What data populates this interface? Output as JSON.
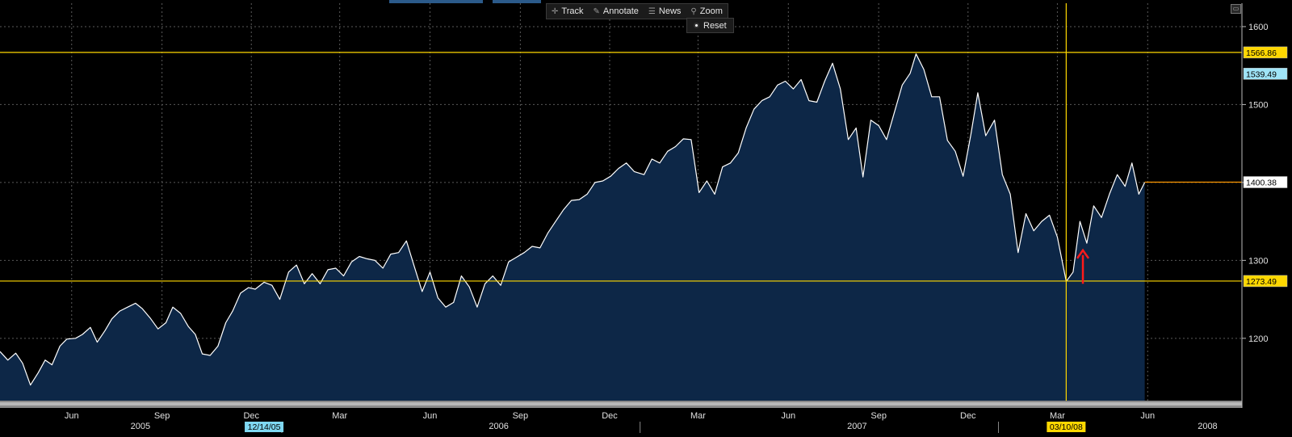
{
  "toolbar": {
    "track_label": "Track",
    "annotate_label": "Annotate",
    "news_label": "News",
    "zoom_label": "Zoom",
    "reset_label": "Reset"
  },
  "colors": {
    "background": "#000000",
    "area_fill": "#0d2747",
    "line": "#ffffff",
    "reference_line": "#ffd800",
    "last_line": "#ff9900",
    "arrow": "#ff1a1a",
    "grid": "#5a5a5a"
  },
  "chart_data": {
    "type": "area",
    "title": "",
    "xlabel": "",
    "ylabel": "",
    "y_axis_position": "right",
    "ylim": [
      1120,
      1630
    ],
    "grid": true,
    "y_ticks": [
      1200,
      1300,
      1400,
      1500,
      1600
    ],
    "x_ticks": [
      {
        "date": "2005-06-01",
        "label": "Jun"
      },
      {
        "date": "2005-09-01",
        "label": "Sep"
      },
      {
        "date": "2005-12-01",
        "label": "Dec"
      },
      {
        "date": "2006-03-01",
        "label": "Mar"
      },
      {
        "date": "2006-06-01",
        "label": "Jun"
      },
      {
        "date": "2006-09-01",
        "label": "Sep"
      },
      {
        "date": "2006-12-01",
        "label": "Dec"
      },
      {
        "date": "2007-03-01",
        "label": "Mar"
      },
      {
        "date": "2007-06-01",
        "label": "Jun"
      },
      {
        "date": "2007-09-01",
        "label": "Sep"
      },
      {
        "date": "2007-12-01",
        "label": "Dec"
      },
      {
        "date": "2008-03-01",
        "label": "Mar"
      },
      {
        "date": "2008-06-01",
        "label": "Jun"
      }
    ],
    "year_labels": [
      {
        "date": "2005-08-10",
        "label": "2005"
      },
      {
        "date": "2006-08-10",
        "label": "2006"
      },
      {
        "date": "2007-08-10",
        "label": "2007"
      },
      {
        "date": "2008-08-01",
        "label": "2008"
      }
    ],
    "year_dividers": [
      "2006-01-01",
      "2007-01-01",
      "2008-01-01"
    ],
    "x_range": [
      "2005-03-20",
      "2008-09-05"
    ],
    "highlighted_dates": [
      {
        "date": "2005-12-14",
        "label": "12/14/05",
        "style": "cyan"
      },
      {
        "date": "2008-03-10",
        "label": "03/10/08",
        "style": "yellow"
      }
    ],
    "horizontal_lines": [
      {
        "value": 1566.86,
        "label": "1566.86",
        "style": "yellow"
      },
      {
        "value": 1273.49,
        "label": "1273.49",
        "style": "yellow"
      }
    ],
    "vertical_lines": [
      {
        "date": "2008-03-10",
        "style": "yellow"
      }
    ],
    "last_value": {
      "value": 1400.38,
      "label": "1400.38",
      "date": "2008-05-29"
    },
    "side_labels": [
      {
        "value": 1539.49,
        "label": "1539.49",
        "style": "cyan"
      }
    ],
    "annotation_arrow": {
      "date": "2008-03-27",
      "from_value": 1270,
      "to_value": 1313,
      "color": "#ff1a1a"
    },
    "series": [
      {
        "points": [
          [
            "2005-03-20",
            1183
          ],
          [
            "2005-03-28",
            1172
          ],
          [
            "2005-04-05",
            1181
          ],
          [
            "2005-04-12",
            1168
          ],
          [
            "2005-04-20",
            1140
          ],
          [
            "2005-04-28",
            1156
          ],
          [
            "2005-05-05",
            1172
          ],
          [
            "2005-05-12",
            1166
          ],
          [
            "2005-05-20",
            1190
          ],
          [
            "2005-05-27",
            1199
          ],
          [
            "2005-06-05",
            1200
          ],
          [
            "2005-06-12",
            1205
          ],
          [
            "2005-06-20",
            1214
          ],
          [
            "2005-06-27",
            1195
          ],
          [
            "2005-07-05",
            1210
          ],
          [
            "2005-07-12",
            1225
          ],
          [
            "2005-07-20",
            1235
          ],
          [
            "2005-07-28",
            1240
          ],
          [
            "2005-08-05",
            1245
          ],
          [
            "2005-08-12",
            1238
          ],
          [
            "2005-08-20",
            1226
          ],
          [
            "2005-08-28",
            1212
          ],
          [
            "2005-09-05",
            1220
          ],
          [
            "2005-09-12",
            1240
          ],
          [
            "2005-09-20",
            1232
          ],
          [
            "2005-09-28",
            1215
          ],
          [
            "2005-10-05",
            1205
          ],
          [
            "2005-10-12",
            1180
          ],
          [
            "2005-10-20",
            1178
          ],
          [
            "2005-10-28",
            1190
          ],
          [
            "2005-11-05",
            1220
          ],
          [
            "2005-11-12",
            1235
          ],
          [
            "2005-11-20",
            1258
          ],
          [
            "2005-11-28",
            1265
          ],
          [
            "2005-12-05",
            1263
          ],
          [
            "2005-12-14",
            1272
          ],
          [
            "2005-12-22",
            1268
          ],
          [
            "2005-12-30",
            1250
          ],
          [
            "2006-01-08",
            1285
          ],
          [
            "2006-01-16",
            1294
          ],
          [
            "2006-01-24",
            1270
          ],
          [
            "2006-02-01",
            1283
          ],
          [
            "2006-02-09",
            1270
          ],
          [
            "2006-02-17",
            1288
          ],
          [
            "2006-02-25",
            1290
          ],
          [
            "2006-03-05",
            1280
          ],
          [
            "2006-03-13",
            1298
          ],
          [
            "2006-03-21",
            1305
          ],
          [
            "2006-03-29",
            1302
          ],
          [
            "2006-04-06",
            1300
          ],
          [
            "2006-04-14",
            1290
          ],
          [
            "2006-04-22",
            1308
          ],
          [
            "2006-04-30",
            1310
          ],
          [
            "2006-05-08",
            1325
          ],
          [
            "2006-05-16",
            1292
          ],
          [
            "2006-05-24",
            1260
          ],
          [
            "2006-06-01",
            1285
          ],
          [
            "2006-06-09",
            1252
          ],
          [
            "2006-06-17",
            1240
          ],
          [
            "2006-06-25",
            1246
          ],
          [
            "2006-07-03",
            1280
          ],
          [
            "2006-07-11",
            1266
          ],
          [
            "2006-07-19",
            1240
          ],
          [
            "2006-07-27",
            1270
          ],
          [
            "2006-08-04",
            1280
          ],
          [
            "2006-08-12",
            1268
          ],
          [
            "2006-08-20",
            1298
          ],
          [
            "2006-08-28",
            1304
          ],
          [
            "2006-09-05",
            1310
          ],
          [
            "2006-09-13",
            1318
          ],
          [
            "2006-09-21",
            1316
          ],
          [
            "2006-09-29",
            1335
          ],
          [
            "2006-10-07",
            1350
          ],
          [
            "2006-10-15",
            1365
          ],
          [
            "2006-10-23",
            1377
          ],
          [
            "2006-10-31",
            1378
          ],
          [
            "2006-11-08",
            1385
          ],
          [
            "2006-11-16",
            1400
          ],
          [
            "2006-11-24",
            1402
          ],
          [
            "2006-12-02",
            1408
          ],
          [
            "2006-12-10",
            1418
          ],
          [
            "2006-12-18",
            1425
          ],
          [
            "2006-12-26",
            1414
          ],
          [
            "2007-01-05",
            1410
          ],
          [
            "2007-01-13",
            1430
          ],
          [
            "2007-01-21",
            1425
          ],
          [
            "2007-01-29",
            1440
          ],
          [
            "2007-02-06",
            1446
          ],
          [
            "2007-02-14",
            1456
          ],
          [
            "2007-02-22",
            1455
          ],
          [
            "2007-03-02",
            1387
          ],
          [
            "2007-03-10",
            1402
          ],
          [
            "2007-03-18",
            1385
          ],
          [
            "2007-03-26",
            1420
          ],
          [
            "2007-04-03",
            1425
          ],
          [
            "2007-04-11",
            1438
          ],
          [
            "2007-04-19",
            1470
          ],
          [
            "2007-04-27",
            1494
          ],
          [
            "2007-05-05",
            1505
          ],
          [
            "2007-05-13",
            1510
          ],
          [
            "2007-05-21",
            1525
          ],
          [
            "2007-05-29",
            1530
          ],
          [
            "2007-06-06",
            1520
          ],
          [
            "2007-06-14",
            1532
          ],
          [
            "2007-06-22",
            1505
          ],
          [
            "2007-06-30",
            1503
          ],
          [
            "2007-07-08",
            1530
          ],
          [
            "2007-07-16",
            1553
          ],
          [
            "2007-07-24",
            1520
          ],
          [
            "2007-08-01",
            1455
          ],
          [
            "2007-08-09",
            1470
          ],
          [
            "2007-08-16",
            1407
          ],
          [
            "2007-08-24",
            1480
          ],
          [
            "2007-09-01",
            1473
          ],
          [
            "2007-09-09",
            1455
          ],
          [
            "2007-09-17",
            1490
          ],
          [
            "2007-09-25",
            1525
          ],
          [
            "2007-10-03",
            1540
          ],
          [
            "2007-10-09",
            1565
          ],
          [
            "2007-10-17",
            1545
          ],
          [
            "2007-10-25",
            1510
          ],
          [
            "2007-11-02",
            1510
          ],
          [
            "2007-11-10",
            1454
          ],
          [
            "2007-11-18",
            1440
          ],
          [
            "2007-11-26",
            1408
          ],
          [
            "2007-12-04",
            1462
          ],
          [
            "2007-12-11",
            1515
          ],
          [
            "2007-12-19",
            1460
          ],
          [
            "2007-12-28",
            1480
          ],
          [
            "2008-01-05",
            1410
          ],
          [
            "2008-01-13",
            1385
          ],
          [
            "2008-01-21",
            1310
          ],
          [
            "2008-01-29",
            1360
          ],
          [
            "2008-02-06",
            1338
          ],
          [
            "2008-02-14",
            1350
          ],
          [
            "2008-02-22",
            1358
          ],
          [
            "2008-03-01",
            1330
          ],
          [
            "2008-03-10",
            1273
          ],
          [
            "2008-03-17",
            1285
          ],
          [
            "2008-03-24",
            1350
          ],
          [
            "2008-03-31",
            1322
          ],
          [
            "2008-04-07",
            1370
          ],
          [
            "2008-04-15",
            1355
          ],
          [
            "2008-04-23",
            1385
          ],
          [
            "2008-05-01",
            1410
          ],
          [
            "2008-05-09",
            1395
          ],
          [
            "2008-05-16",
            1425
          ],
          [
            "2008-05-23",
            1385
          ],
          [
            "2008-05-29",
            1400
          ]
        ]
      }
    ]
  }
}
